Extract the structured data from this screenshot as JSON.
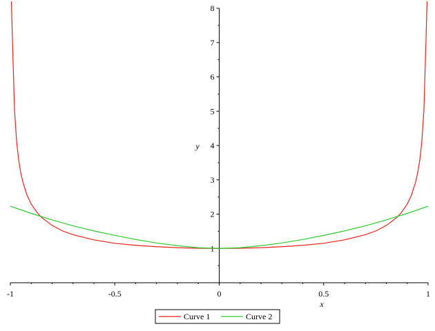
{
  "chart_data": {
    "type": "line",
    "xlabel": "x",
    "ylabel": "y",
    "xlim": [
      -1,
      1
    ],
    "ylim": [
      0,
      8
    ],
    "grid": false,
    "legend_position": "bottom",
    "x_ticks": [
      {
        "value": -1,
        "label": "-1"
      },
      {
        "value": -0.5,
        "label": "-0.5"
      },
      {
        "value": 0,
        "label": "0"
      },
      {
        "value": 0.5,
        "label": "0.5"
      },
      {
        "value": 1,
        "label": "1"
      }
    ],
    "y_ticks": [
      {
        "value": 1,
        "label": "1"
      },
      {
        "value": 2,
        "label": "2"
      },
      {
        "value": 3,
        "label": "3"
      },
      {
        "value": 4,
        "label": "4"
      },
      {
        "value": 5,
        "label": "5"
      },
      {
        "value": 6,
        "label": "6"
      },
      {
        "value": 7,
        "label": "7"
      },
      {
        "value": 8,
        "label": "8"
      }
    ],
    "series": [
      {
        "name": "Curve 1",
        "color": "#e8201a",
        "x": [
          -0.99,
          -0.98,
          -0.97,
          -0.96,
          -0.95,
          -0.94,
          -0.92,
          -0.9,
          -0.87,
          -0.85,
          -0.8,
          -0.75,
          -0.7,
          -0.6,
          -0.5,
          -0.4,
          -0.3,
          -0.2,
          -0.1,
          0,
          0.1,
          0.2,
          0.3,
          0.4,
          0.5,
          0.6,
          0.7,
          0.75,
          0.8,
          0.85,
          0.87,
          0.9,
          0.92,
          0.94,
          0.95,
          0.96,
          0.97,
          0.98,
          0.99
        ],
        "y": [
          7.09,
          5.03,
          4.11,
          3.57,
          3.2,
          2.93,
          2.55,
          2.29,
          2.03,
          1.9,
          1.67,
          1.51,
          1.4,
          1.25,
          1.15,
          1.09,
          1.05,
          1.02,
          1.005,
          1,
          1.005,
          1.02,
          1.05,
          1.09,
          1.15,
          1.25,
          1.4,
          1.51,
          1.67,
          1.9,
          2.03,
          2.29,
          2.55,
          2.93,
          3.2,
          3.57,
          4.11,
          5.03,
          7.09
        ]
      },
      {
        "name": "Curve 2",
        "color": "#2ec82e",
        "x": [
          -1,
          -0.9,
          -0.8,
          -0.7,
          -0.6,
          -0.5,
          -0.4,
          -0.3,
          -0.2,
          -0.1,
          0,
          0.1,
          0.2,
          0.3,
          0.4,
          0.5,
          0.6,
          0.7,
          0.8,
          0.9,
          1
        ],
        "y": [
          2.23,
          2.02,
          1.83,
          1.66,
          1.51,
          1.38,
          1.26,
          1.16,
          1.08,
          1.02,
          1,
          1.02,
          1.08,
          1.16,
          1.26,
          1.38,
          1.51,
          1.66,
          1.83,
          2.02,
          2.23
        ]
      }
    ]
  }
}
